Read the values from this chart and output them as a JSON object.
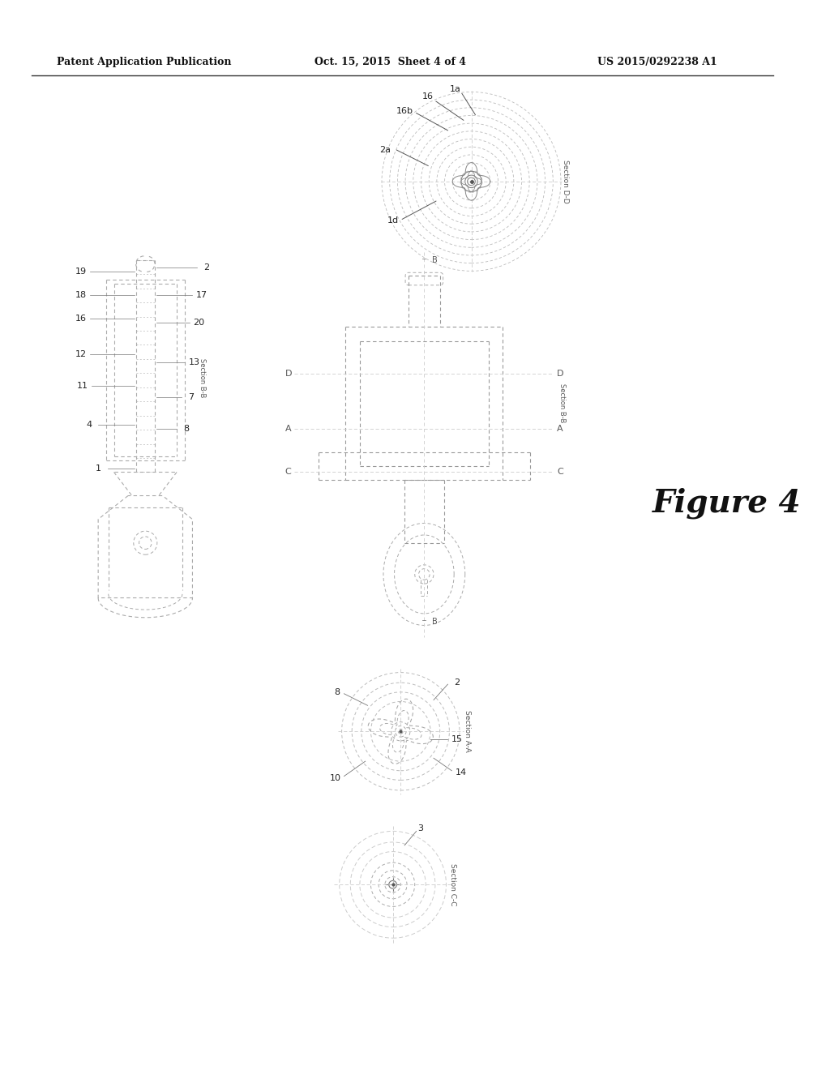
{
  "bg_color": "#ffffff",
  "header_left": "Patent Application Publication",
  "header_mid": "Oct. 15, 2015  Sheet 4 of 4",
  "header_right": "US 2015/0292238 A1",
  "figure_label": "Figure 4",
  "lc": "#555555",
  "dc": "#aaaaaa"
}
